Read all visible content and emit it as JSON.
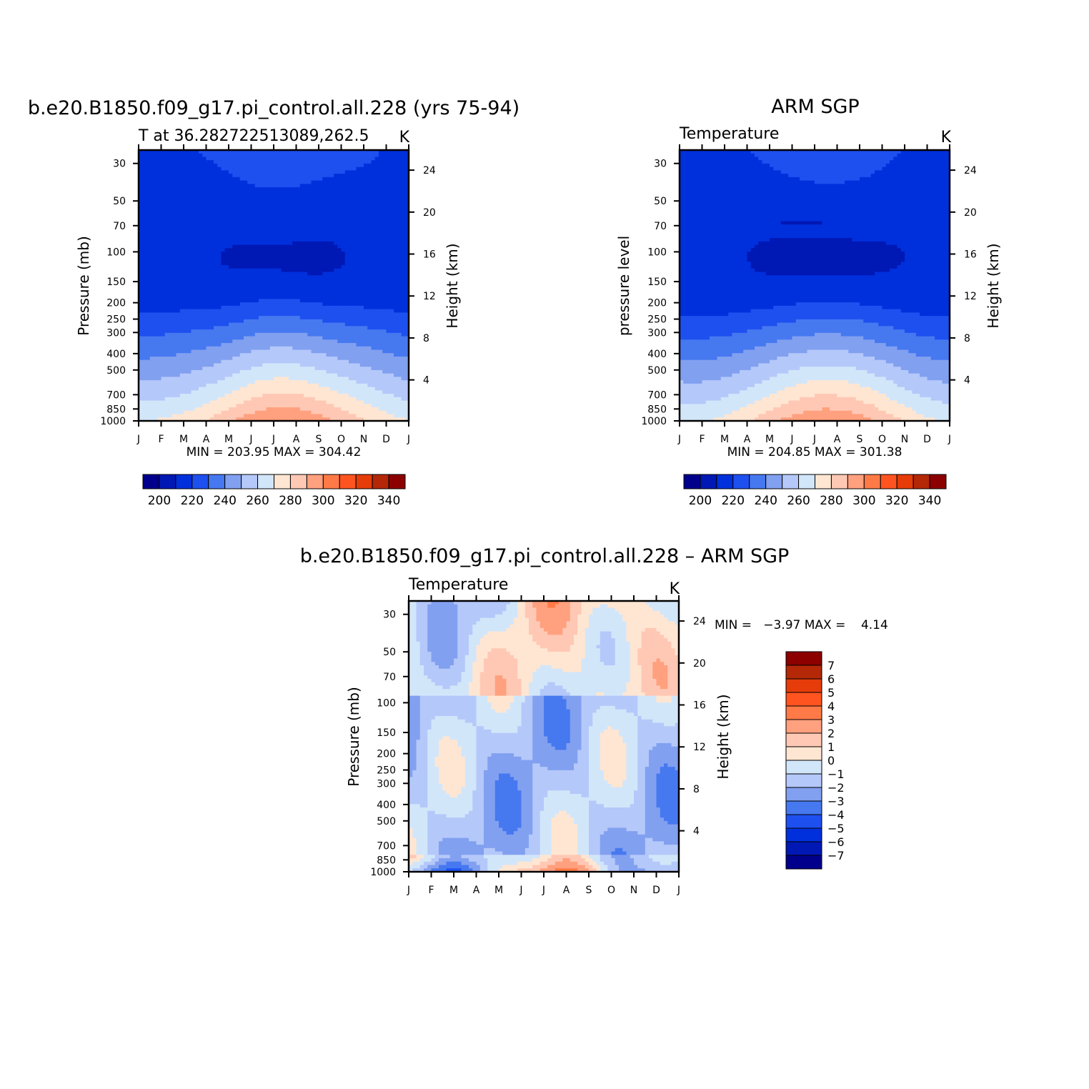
{
  "chart_data": [
    {
      "type": "heatmap",
      "title": "b.e20.B1850.f09_g17.pi_control.all.228 (yrs 75-94)",
      "left_subtitle": "T at 36.282722513089,262.5",
      "right_subtitle": "K",
      "ylabel_left": "Pressure (mb)",
      "ylabel_right": "Height (km)",
      "x_ticks": [
        "J",
        "F",
        "M",
        "A",
        "M",
        "J",
        "J",
        "A",
        "S",
        "O",
        "N",
        "D",
        "J"
      ],
      "y_ticks_left": [
        30,
        50,
        70,
        100,
        150,
        200,
        250,
        300,
        400,
        500,
        700,
        850,
        1000
      ],
      "y_ticks_right": [
        24,
        20,
        16,
        12,
        8,
        4
      ],
      "min_max_label": "MIN = 203.95 MAX = 304.42",
      "min": 203.95,
      "max": 304.42,
      "ylim_mb": [
        1000,
        25
      ],
      "colorbar": {
        "labels": [
          "200",
          "220",
          "240",
          "260",
          "280",
          "300",
          "320",
          "340"
        ],
        "levels": [
          190,
          200,
          210,
          220,
          230,
          240,
          250,
          260,
          270,
          280,
          290,
          300,
          310,
          320,
          330,
          340,
          350
        ]
      }
    },
    {
      "type": "heatmap",
      "title": "ARM SGP",
      "left_subtitle": "Temperature",
      "right_subtitle": "K",
      "ylabel_left": "pressure level",
      "ylabel_right": "Height (km)",
      "x_ticks": [
        "J",
        "F",
        "M",
        "A",
        "M",
        "J",
        "J",
        "A",
        "S",
        "O",
        "N",
        "D",
        "J"
      ],
      "y_ticks_left": [
        30,
        50,
        70,
        100,
        150,
        200,
        250,
        300,
        400,
        500,
        700,
        850,
        1000
      ],
      "y_ticks_right": [
        24,
        20,
        16,
        12,
        8,
        4
      ],
      "min_max_label": "MIN = 204.85 MAX = 301.38",
      "min": 204.85,
      "max": 301.38,
      "ylim_mb": [
        1000,
        25
      ],
      "colorbar": {
        "labels": [
          "200",
          "220",
          "240",
          "260",
          "280",
          "300",
          "320",
          "340"
        ],
        "levels": [
          190,
          200,
          210,
          220,
          230,
          240,
          250,
          260,
          270,
          280,
          290,
          300,
          310,
          320,
          330,
          340,
          350
        ]
      }
    },
    {
      "type": "heatmap",
      "title": "b.e20.B1850.f09_g17.pi_control.all.228 – ARM SGP",
      "left_subtitle": "Temperature",
      "right_subtitle": "K",
      "ylabel_left": "Pressure (mb)",
      "ylabel_right": "Height (km)",
      "x_ticks": [
        "J",
        "F",
        "M",
        "A",
        "M",
        "J",
        "J",
        "A",
        "S",
        "O",
        "N",
        "D",
        "J"
      ],
      "y_ticks_left": [
        30,
        50,
        70,
        100,
        150,
        200,
        250,
        300,
        400,
        500,
        700,
        850,
        1000
      ],
      "y_ticks_right": [
        24,
        20,
        16,
        12,
        8,
        4
      ],
      "min_max_label": "MIN =   −3.97 MAX =    4.14",
      "min": -3.97,
      "max": 4.14,
      "ylim_mb": [
        1000,
        25
      ],
      "colorbar": {
        "labels": [
          "7",
          "6",
          "5",
          "4",
          "3",
          "2",
          "1",
          "0",
          "−1",
          "−2",
          "−3",
          "−4",
          "−5",
          "−6",
          "−7"
        ],
        "levels": [
          -8,
          -7,
          -6,
          -5,
          -4,
          -3,
          -2,
          -1,
          0,
          1,
          2,
          3,
          4,
          5,
          6,
          7,
          8
        ]
      }
    }
  ],
  "colors": {
    "palette": [
      "#00008c",
      "#0018b4",
      "#0030dc",
      "#1e50f0",
      "#4678f0",
      "#82a0f0",
      "#b4c8fa",
      "#d2e6fa",
      "#ffe6d2",
      "#ffc8b4",
      "#ffa07e",
      "#ff7a46",
      "#ff5420",
      "#e63c0a",
      "#b42808",
      "#8c0000"
    ]
  }
}
